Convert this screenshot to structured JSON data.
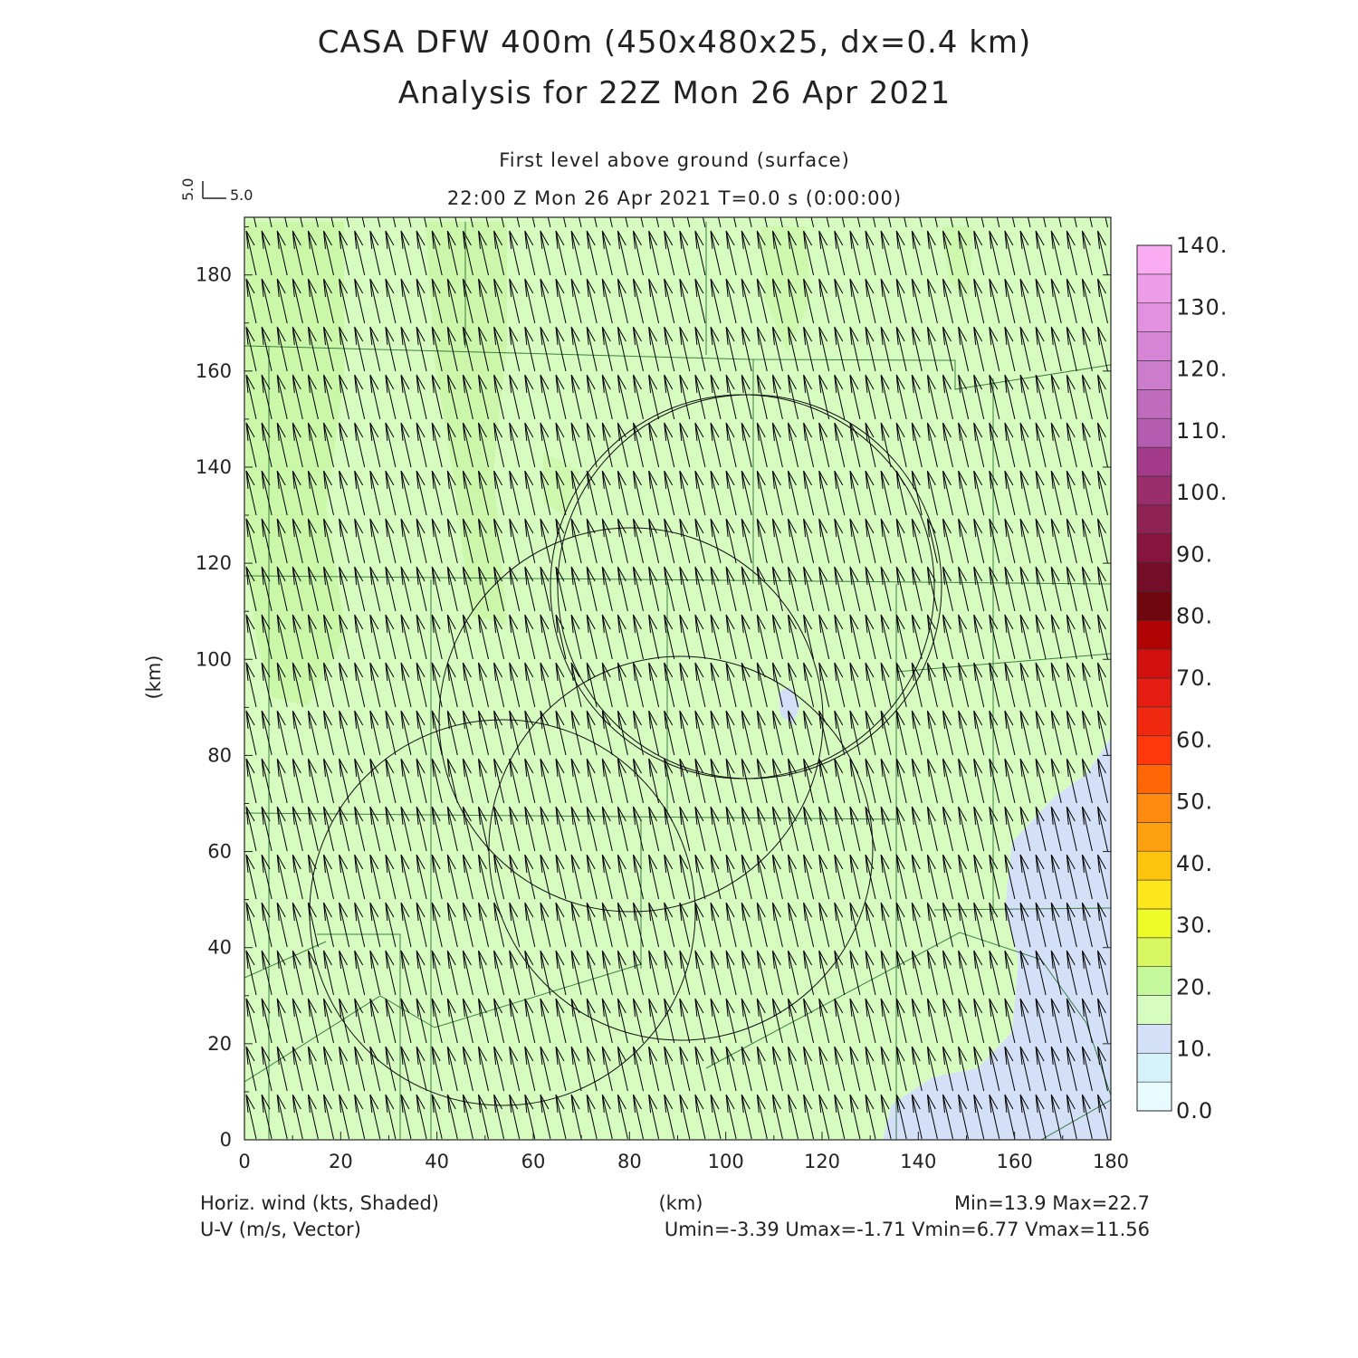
{
  "title_line1": "CASA DFW 400m (450x480x25, dx=0.4 km)",
  "title_line2": "Analysis for 22Z Mon 26 Apr 2021",
  "subtitle_line1": "First level above ground (surface)",
  "subtitle_line2": "22:00 Z Mon 26 Apr 2021   T=0.0 s (0:00:00)",
  "reference_vector": {
    "u_label": "5.0",
    "v_label": "5.0"
  },
  "footer": {
    "left_line1": "Horiz. wind (kts, Shaded)",
    "left_line2": "U-V (m/s, Vector)",
    "center": "(km)",
    "right_line1": "Min=13.9 Max=22.7",
    "right_line2": "Umin=-3.39 Umax=-1.71 Vmin=6.77 Vmax=11.56"
  },
  "chart_data": {
    "type": "heatmap",
    "xlabel": "(km)",
    "ylabel": "(km)",
    "xlim": [
      0,
      180
    ],
    "ylim": [
      0,
      192
    ],
    "x_ticks": [
      "0",
      "20",
      "40",
      "60",
      "80",
      "100",
      "120",
      "140",
      "160",
      "180"
    ],
    "y_ticks": [
      "0",
      "20",
      "40",
      "60",
      "80",
      "100",
      "120",
      "140",
      "160",
      "180"
    ],
    "field_range": {
      "min": 13.9,
      "max": 22.7
    },
    "vector_range": {
      "umin": -3.39,
      "umax": -1.71,
      "vmin": 6.77,
      "vmax": 11.56
    },
    "base_color": "#d6fcc0",
    "colorbar": {
      "levels": [
        "0.0",
        "10.",
        "20.",
        "30.",
        "40.",
        "50.",
        "60.",
        "70.",
        "80.",
        "90.",
        "100.",
        "110.",
        "120.",
        "130.",
        "140."
      ],
      "colors": [
        "#e8fbff",
        "#d5f2fb",
        "#d3e0f8",
        "#d6fcc0",
        "#c4f89a",
        "#d8f660",
        "#eefa28",
        "#fee61c",
        "#ffc40e",
        "#ffa010",
        "#ff8a10",
        "#ff6606",
        "#ff380c",
        "#f02810",
        "#e41c12",
        "#d21010",
        "#b00404",
        "#6e080e",
        "#740e28",
        "#86143c",
        "#8e2252",
        "#9a2e6c",
        "#a43a8a",
        "#b45cb0",
        "#c06cbe",
        "#cc7ccc",
        "#d684d6",
        "#e290e0",
        "#ee9ee8",
        "#faacf2"
      ]
    }
  }
}
